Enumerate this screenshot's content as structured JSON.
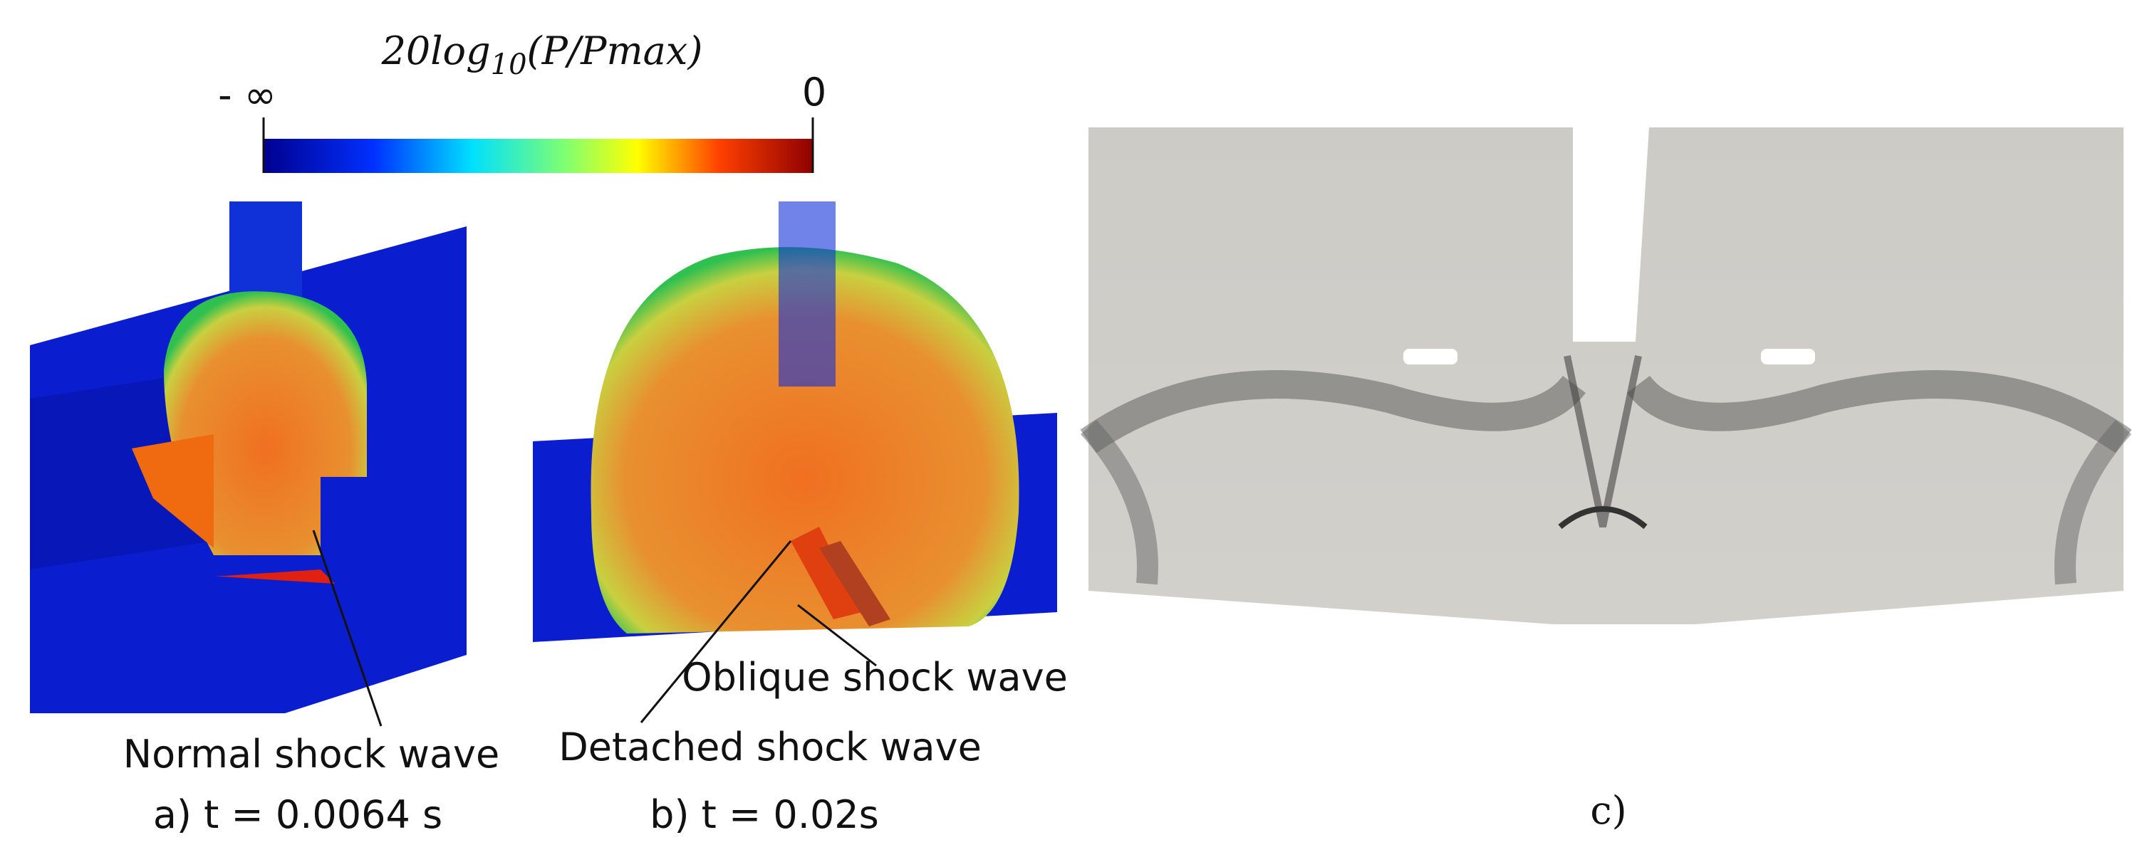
{
  "colorbar": {
    "title": {
      "prefix": "20log",
      "subscript": "10",
      "suffix": "(P/Pmax)"
    },
    "min_label": "- ∞",
    "max_label": "0"
  },
  "panels": [
    {
      "label": "a) t = 0.0064 s",
      "annotations": [
        "Normal shock wave"
      ]
    },
    {
      "label": "b) t = 0.02s",
      "annotations": [
        "Oblique shock wave",
        "Detached shock wave"
      ]
    },
    {
      "label": "c)"
    }
  ]
}
